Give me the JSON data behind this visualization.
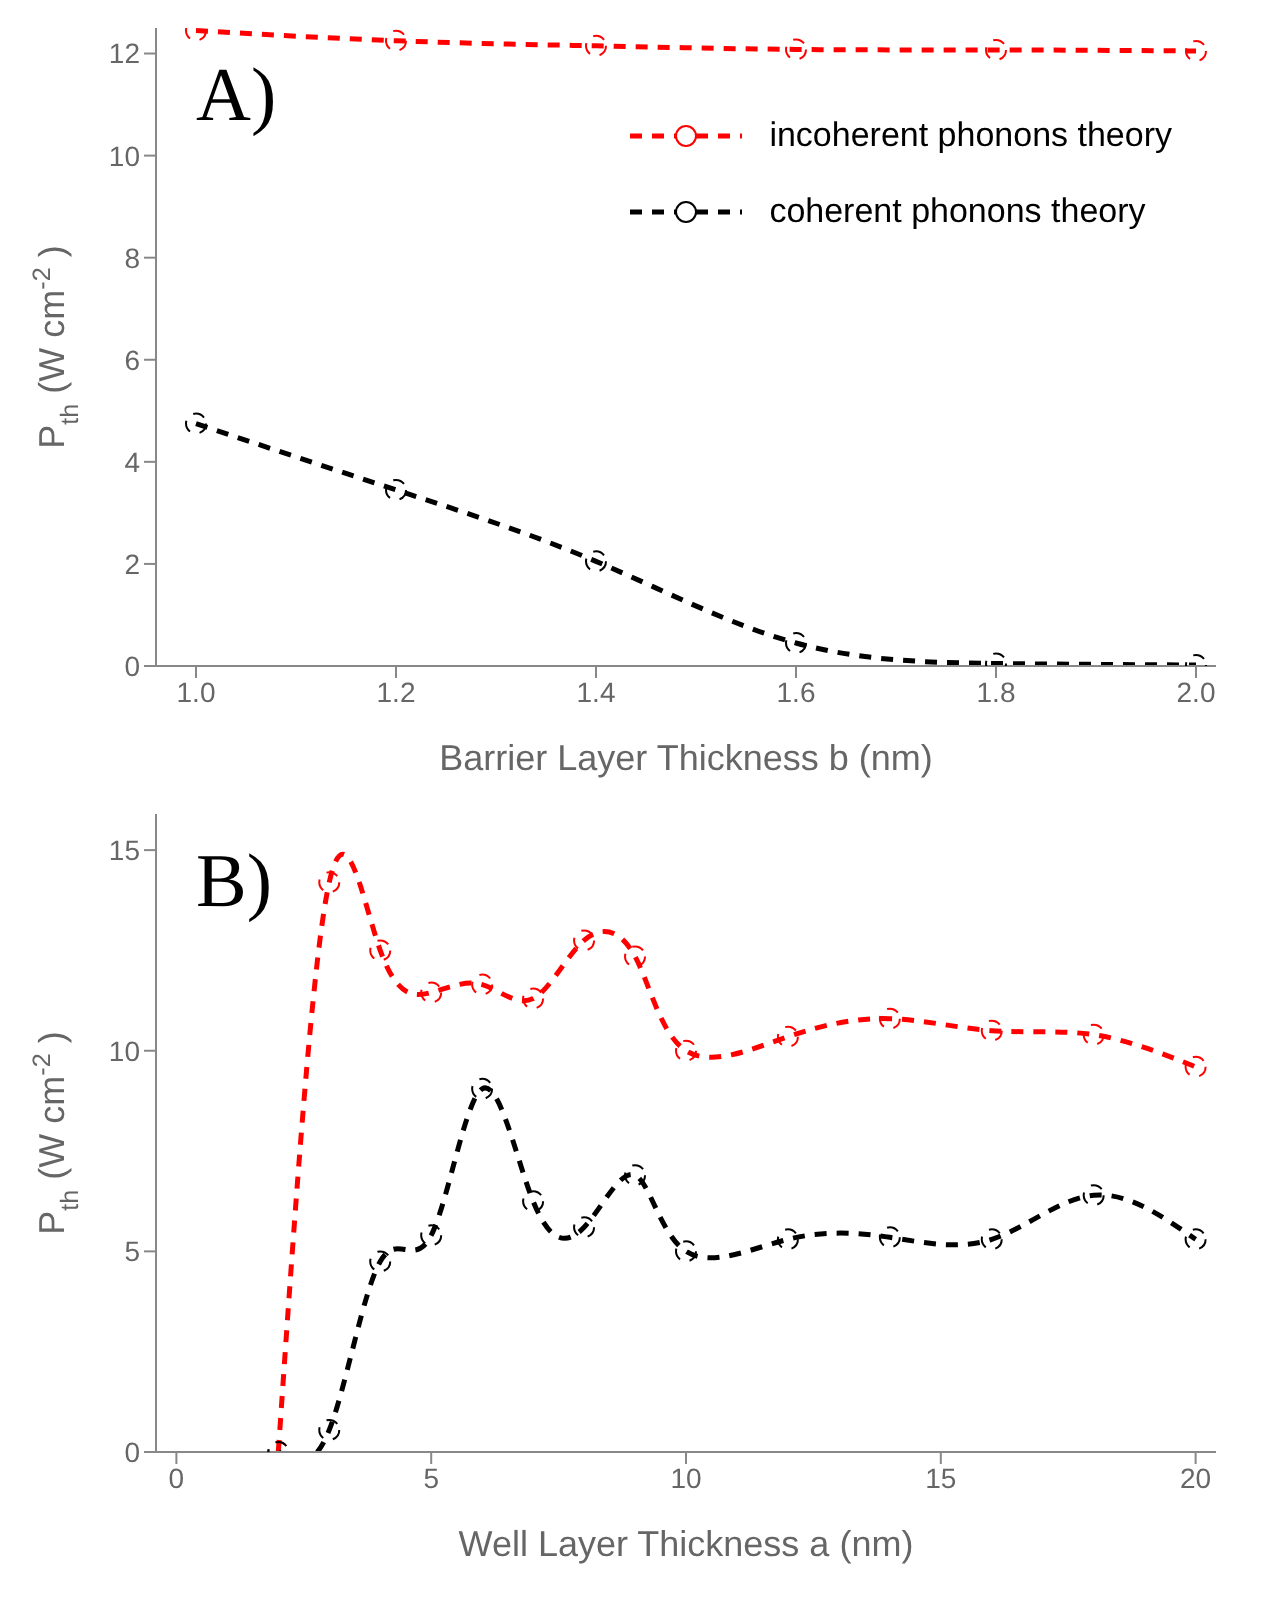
{
  "chart_data": [
    {
      "type": "line",
      "xlabel": "Barrier Layer Thickness b (nm)",
      "ylabel": "P$_{th}$ (W cm$^{-2}$ )",
      "annotations": [
        "A)"
      ],
      "xlim": [
        0.96,
        2.02
      ],
      "xticks": [
        {
          "value": 1,
          "label": "1.0"
        },
        {
          "value": 1.2,
          "label": "1.2"
        },
        {
          "value": 1.4,
          "label": "1.4"
        },
        {
          "value": 1.6,
          "label": "1.6"
        },
        {
          "value": 1.8,
          "label": "1.8"
        },
        {
          "value": 2,
          "label": "2.0"
        }
      ],
      "ylim": [
        0,
        12.5
      ],
      "yticks": [
        0,
        2,
        4,
        6,
        8,
        10,
        12
      ],
      "x": [
        1,
        1.2,
        1.4,
        1.6,
        1.8,
        2
      ],
      "series": [
        {
          "name": "incoherent phonons theory",
          "color": "#ff0000",
          "values": [
            12.45,
            12.25,
            12.15,
            12.08,
            12.07,
            12.05
          ]
        },
        {
          "name": "coherent phonons theory",
          "color": "#000000",
          "values": [
            4.75,
            3.45,
            2.05,
            0.45,
            0.05,
            0.02
          ]
        }
      ],
      "legend": "top right",
      "marker": "circle",
      "line_style": "dashed",
      "grid": false
    },
    {
      "type": "line",
      "xlabel": "Well Layer Thickness a (nm)",
      "ylabel": "P$_{th}$ (W cm$^{-2}$ )",
      "annotations": [
        "B)"
      ],
      "xlim": [
        -0.4,
        20.4
      ],
      "xticks": [
        0,
        5,
        10,
        15,
        20
      ],
      "ylim": [
        0,
        15.9
      ],
      "yticks": [
        0,
        5,
        10,
        15
      ],
      "x": [
        2,
        3,
        4,
        5,
        6,
        7,
        8,
        9,
        10,
        12,
        14,
        16,
        18,
        20
      ],
      "series": [
        {
          "color": "#ff0000",
          "values": [
            0,
            14.2,
            12.5,
            11.45,
            11.65,
            11.3,
            12.75,
            12.35,
            10.0,
            10.35,
            10.8,
            10.5,
            10.4,
            9.6
          ]
        },
        {
          "color": "#000000",
          "values": [
            0,
            0.55,
            4.75,
            5.4,
            9.05,
            6.25,
            5.6,
            6.9,
            5.0,
            5.3,
            5.35,
            5.3,
            6.4,
            5.3
          ]
        }
      ],
      "marker": "circle",
      "line_style": "dashed",
      "grid": false
    }
  ]
}
